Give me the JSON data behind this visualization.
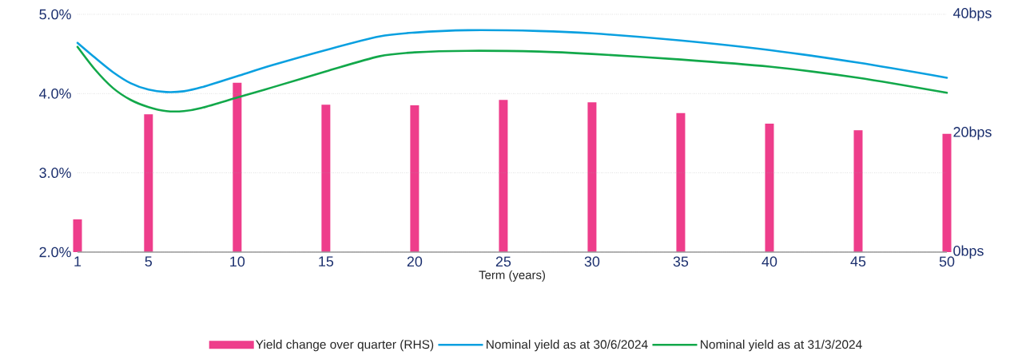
{
  "chart_data": {
    "type": "line",
    "xlabel": "Term (years)",
    "xlim": [
      1,
      50
    ],
    "xticks": [
      1,
      5,
      10,
      15,
      20,
      25,
      30,
      35,
      40,
      45,
      50
    ],
    "ylim": [
      2,
      5
    ],
    "yticks": [
      {
        "value": 2,
        "label": "2.0%"
      },
      {
        "value": 3,
        "label": "3.0%"
      },
      {
        "value": 4,
        "label": "4.0%"
      },
      {
        "value": 5,
        "label": "5.0%"
      }
    ],
    "y2lim": [
      0,
      40
    ],
    "y2ticks": [
      {
        "value": 0,
        "label": "0bps"
      },
      {
        "value": 20,
        "label": "20bps"
      },
      {
        "value": 40,
        "label": "40bps"
      }
    ],
    "grid": "y",
    "legend": "bottom",
    "series": [
      {
        "name": "Yield change over quarter (RHS)",
        "type": "bar",
        "axis": "y2",
        "color": "#ee3d8b",
        "x": [
          1,
          5,
          10,
          15,
          20,
          25,
          30,
          35,
          40,
          45,
          50
        ],
        "values": [
          5.5,
          23.2,
          28.5,
          24.8,
          24.7,
          25.6,
          25.2,
          23.4,
          21.6,
          20.5,
          19.9
        ]
      },
      {
        "name": "Nominal yield as at 30/6/2024",
        "color": "#0aa0e0",
        "x": [
          1,
          2,
          3,
          4,
          5,
          6,
          7,
          8,
          10,
          12,
          15,
          18,
          20,
          23,
          27,
          30,
          35,
          40,
          45,
          50
        ],
        "values": [
          4.64,
          4.45,
          4.27,
          4.13,
          4.05,
          4.02,
          4.03,
          4.08,
          4.22,
          4.36,
          4.55,
          4.72,
          4.77,
          4.8,
          4.79,
          4.76,
          4.67,
          4.55,
          4.39,
          4.2
        ]
      },
      {
        "name": "Nominal yield as at 31/3/2024",
        "color": "#12a84a",
        "x": [
          1,
          2,
          3,
          4,
          5,
          6,
          7,
          8,
          10,
          12,
          15,
          18,
          20,
          23,
          27,
          30,
          35,
          40,
          45,
          50
        ],
        "values": [
          4.59,
          4.3,
          4.07,
          3.92,
          3.83,
          3.78,
          3.78,
          3.82,
          3.95,
          4.08,
          4.28,
          4.47,
          4.52,
          4.54,
          4.53,
          4.5,
          4.43,
          4.34,
          4.2,
          4.01
        ]
      }
    ]
  }
}
